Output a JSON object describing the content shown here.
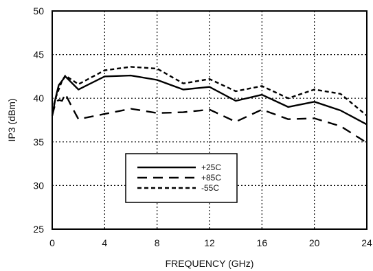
{
  "chart_data": {
    "type": "line",
    "xlabel": "FREQUENCY (GHz)",
    "ylabel": "IP3 (dBm)",
    "xlim": [
      0,
      24
    ],
    "ylim": [
      25,
      50
    ],
    "xticks": [
      0,
      4,
      8,
      12,
      16,
      20,
      24
    ],
    "yticks": [
      25,
      30,
      35,
      40,
      45,
      50
    ],
    "grid": true,
    "legend_position": "lower-left-center",
    "series": [
      {
        "name": "+25C",
        "style": "solid",
        "x": [
          0,
          0.25,
          0.5,
          0.75,
          1,
          2,
          4,
          6,
          8,
          10,
          12,
          14,
          16,
          18,
          20,
          22,
          24
        ],
        "y": [
          38.0,
          40.0,
          41.5,
          42.0,
          42.5,
          41.0,
          42.5,
          42.6,
          42.1,
          41.0,
          41.3,
          39.7,
          40.4,
          39.0,
          39.6,
          38.6,
          37.0
        ]
      },
      {
        "name": "+85C",
        "style": "long-dash",
        "x": [
          0,
          0.25,
          0.5,
          0.75,
          1,
          1.5,
          2,
          4,
          6,
          8,
          10,
          12,
          14,
          16,
          18,
          20,
          22,
          24
        ],
        "y": [
          38.0,
          39.5,
          39.8,
          39.7,
          40.5,
          39.0,
          37.6,
          38.2,
          38.8,
          38.3,
          38.4,
          38.7,
          37.3,
          38.7,
          37.6,
          37.7,
          36.8,
          34.9
        ]
      },
      {
        "name": "-55C",
        "style": "short-dash",
        "x": [
          0,
          0.25,
          0.5,
          0.75,
          1,
          2,
          4,
          6,
          8,
          10,
          12,
          14,
          16,
          18,
          20,
          22,
          24
        ],
        "y": [
          38.5,
          40.0,
          41.0,
          42.0,
          42.6,
          41.6,
          43.2,
          43.6,
          43.4,
          41.7,
          42.2,
          40.8,
          41.4,
          40.0,
          41.0,
          40.5,
          38.0
        ]
      }
    ]
  }
}
